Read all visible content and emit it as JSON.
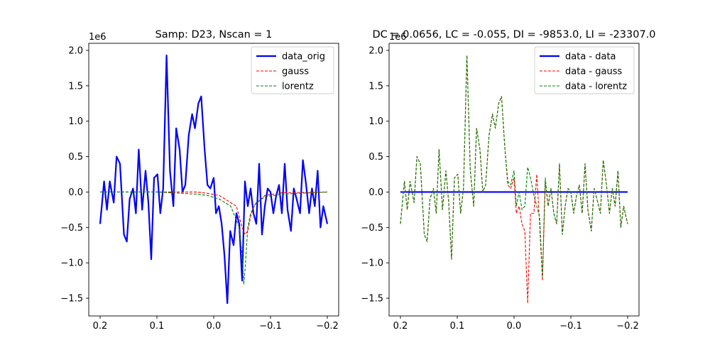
{
  "chart_data": [
    {
      "type": "line",
      "title": "Samp: D23, Nscan = 1",
      "y_offset_label": "1e6",
      "xlim": [
        0.22,
        -0.22
      ],
      "ylim": [
        -1.75,
        2.1
      ],
      "x_ticks": [
        0.2,
        0.1,
        0.0,
        -0.1,
        -0.2
      ],
      "x_tick_labels": [
        "0.2",
        "0.1",
        "0.0",
        "−0.1",
        "−0.2"
      ],
      "y_ticks": [
        -1.5,
        -1.0,
        -0.5,
        0.0,
        0.5,
        1.0,
        1.5,
        2.0
      ],
      "y_tick_labels": [
        "−1.5",
        "−1.0",
        "−0.5",
        "0.0",
        "0.5",
        "1.0",
        "1.5",
        "2.0"
      ],
      "legend_placement": "upper right",
      "series": [
        {
          "name": "data_orig",
          "color": "#0000ff",
          "style": "solid",
          "x": [
            0.2,
            0.193,
            0.188,
            0.183,
            0.176,
            0.171,
            0.165,
            0.158,
            0.153,
            0.148,
            0.142,
            0.137,
            0.132,
            0.126,
            0.12,
            0.115,
            0.11,
            0.105,
            0.099,
            0.094,
            0.089,
            0.083,
            0.077,
            0.071,
            0.066,
            0.06,
            0.055,
            0.05,
            0.044,
            0.038,
            0.033,
            0.027,
            0.022,
            0.016,
            0.011,
            0.006,
            0.0,
            -0.004,
            -0.009,
            -0.014,
            -0.019,
            -0.024,
            -0.029,
            -0.035,
            -0.04,
            -0.045,
            -0.05,
            -0.055,
            -0.06,
            -0.065,
            -0.07,
            -0.075,
            -0.08,
            -0.085,
            -0.09,
            -0.095,
            -0.1,
            -0.105,
            -0.11,
            -0.115,
            -0.12,
            -0.125,
            -0.13,
            -0.136,
            -0.141,
            -0.146,
            -0.152,
            -0.157,
            -0.162,
            -0.168,
            -0.173,
            -0.178,
            -0.183,
            -0.188,
            -0.193,
            -0.2
          ],
          "y": [
            -0.45,
            0.15,
            -0.25,
            0.15,
            -0.15,
            0.5,
            0.4,
            -0.6,
            -0.7,
            -0.1,
            0.05,
            -0.3,
            0.6,
            -0.25,
            0.3,
            -0.15,
            -0.95,
            0.2,
            0.25,
            -0.3,
            0.05,
            1.93,
            0.3,
            -0.2,
            0.9,
            0.6,
            0.0,
            0.1,
            0.8,
            1.1,
            0.9,
            1.25,
            1.35,
            0.6,
            0.1,
            0.05,
            0.2,
            -0.3,
            -0.2,
            -0.45,
            -0.9,
            -1.57,
            -0.55,
            -0.75,
            -0.3,
            -0.45,
            -1.25,
            0.15,
            -0.2,
            0.05,
            -0.3,
            -0.45,
            0.4,
            -0.6,
            -0.2,
            0.05,
            0.0,
            -0.3,
            -0.05,
            0.1,
            -0.3,
            0.4,
            -0.25,
            -0.55,
            0.05,
            -0.1,
            -0.3,
            0.45,
            0.15,
            -0.3,
            0.05,
            -0.2,
            0.3,
            -0.5,
            -0.2,
            -0.45
          ]
        },
        {
          "name": "gauss",
          "color": "#ff0000",
          "style": "dashed",
          "x": [
            0.2,
            0.1,
            0.03,
            0.01,
            -0.01,
            -0.04,
            -0.05,
            -0.055,
            -0.06,
            -0.065,
            -0.07,
            -0.09,
            -0.12,
            -0.2
          ],
          "y": [
            0.0,
            0.0,
            0.0,
            -0.02,
            -0.05,
            -0.2,
            -0.5,
            -0.6,
            -0.55,
            -0.35,
            -0.2,
            -0.05,
            -0.01,
            0.0
          ]
        },
        {
          "name": "lorentz",
          "color": "#008000",
          "style": "dashed",
          "x": [
            0.2,
            0.1,
            0.03,
            0.01,
            -0.01,
            -0.03,
            -0.045,
            -0.05,
            -0.053,
            -0.056,
            -0.06,
            -0.065,
            -0.075,
            -0.09,
            -0.12,
            -0.2
          ],
          "y": [
            0.0,
            0.0,
            -0.03,
            -0.05,
            -0.1,
            -0.2,
            -0.5,
            -0.9,
            -1.3,
            -1.0,
            -0.5,
            -0.3,
            -0.15,
            -0.07,
            -0.03,
            0.0
          ]
        }
      ]
    },
    {
      "type": "line",
      "title": "DC = 0.0656, LC = -0.055, DI = -9853.0, LI = -23307.0",
      "y_offset_label": "1e6",
      "xlim": [
        0.22,
        -0.22
      ],
      "ylim": [
        -1.75,
        2.1
      ],
      "x_ticks": [
        0.2,
        0.1,
        0.0,
        -0.1,
        -0.2
      ],
      "x_tick_labels": [
        "0.2",
        "0.1",
        "0.0",
        "−0.1",
        "−0.2"
      ],
      "y_ticks": [
        -1.5,
        -1.0,
        -0.5,
        0.0,
        0.5,
        1.0,
        1.5,
        2.0
      ],
      "y_tick_labels": [
        "−1.5",
        "−1.0",
        "−0.5",
        "0.0",
        "0.5",
        "1.0",
        "1.5",
        "2.0"
      ],
      "legend_placement": "upper right",
      "series": [
        {
          "name": "data - data",
          "color": "#0000ff",
          "style": "solid",
          "x": [
            0.2,
            -0.2
          ],
          "y": [
            0.0,
            0.0
          ]
        },
        {
          "name": "data - gauss",
          "color": "#ff0000",
          "style": "dashed",
          "x": [
            0.2,
            0.193,
            0.188,
            0.183,
            0.176,
            0.171,
            0.165,
            0.158,
            0.153,
            0.148,
            0.142,
            0.137,
            0.132,
            0.126,
            0.12,
            0.115,
            0.11,
            0.105,
            0.099,
            0.094,
            0.089,
            0.083,
            0.077,
            0.071,
            0.066,
            0.06,
            0.055,
            0.05,
            0.044,
            0.038,
            0.033,
            0.027,
            0.022,
            0.016,
            0.011,
            0.006,
            0.0,
            -0.004,
            -0.009,
            -0.014,
            -0.019,
            -0.024,
            -0.029,
            -0.035,
            -0.04,
            -0.045,
            -0.05,
            -0.055,
            -0.06,
            -0.065,
            -0.07,
            -0.075,
            -0.08,
            -0.085,
            -0.09,
            -0.095,
            -0.1,
            -0.105,
            -0.11,
            -0.115,
            -0.12,
            -0.125,
            -0.13,
            -0.136,
            -0.141,
            -0.146,
            -0.152,
            -0.157,
            -0.162,
            -0.168,
            -0.173,
            -0.178,
            -0.183,
            -0.188,
            -0.193,
            -0.2
          ],
          "y": [
            -0.45,
            0.15,
            -0.25,
            0.15,
            -0.15,
            0.5,
            0.4,
            -0.6,
            -0.7,
            -0.1,
            0.05,
            -0.3,
            0.6,
            -0.25,
            0.3,
            -0.15,
            -0.95,
            0.2,
            0.25,
            -0.3,
            0.05,
            1.93,
            0.3,
            -0.2,
            0.9,
            0.6,
            0.0,
            0.1,
            0.8,
            1.1,
            0.9,
            1.25,
            1.35,
            0.6,
            0.1,
            0.05,
            0.2,
            -0.3,
            -0.2,
            -0.45,
            -0.55,
            -1.57,
            -0.3,
            -0.3,
            0.25,
            -0.45,
            -1.25,
            0.15,
            -0.2,
            0.05,
            -0.3,
            -0.45,
            0.4,
            -0.6,
            -0.2,
            0.05,
            0.0,
            -0.3,
            -0.05,
            0.1,
            -0.3,
            0.4,
            -0.25,
            -0.55,
            0.05,
            -0.1,
            -0.3,
            0.45,
            0.15,
            -0.3,
            0.05,
            -0.2,
            0.3,
            -0.5,
            -0.2,
            -0.45
          ]
        },
        {
          "name": "data - lorentz",
          "color": "#008000",
          "style": "dashed",
          "x": [
            0.2,
            0.193,
            0.188,
            0.183,
            0.176,
            0.171,
            0.165,
            0.158,
            0.153,
            0.148,
            0.142,
            0.137,
            0.132,
            0.126,
            0.12,
            0.115,
            0.11,
            0.105,
            0.099,
            0.094,
            0.089,
            0.083,
            0.077,
            0.071,
            0.066,
            0.06,
            0.055,
            0.05,
            0.044,
            0.038,
            0.033,
            0.027,
            0.022,
            0.016,
            0.011,
            0.006,
            0.0,
            -0.004,
            -0.009,
            -0.014,
            -0.019,
            -0.024,
            -0.029,
            -0.035,
            -0.04,
            -0.045,
            -0.05,
            -0.055,
            -0.06,
            -0.065,
            -0.07,
            -0.075,
            -0.08,
            -0.085,
            -0.09,
            -0.095,
            -0.1,
            -0.105,
            -0.11,
            -0.115,
            -0.12,
            -0.125,
            -0.13,
            -0.136,
            -0.141,
            -0.146,
            -0.152,
            -0.157,
            -0.162,
            -0.168,
            -0.173,
            -0.178,
            -0.183,
            -0.188,
            -0.193,
            -0.2
          ],
          "y": [
            -0.45,
            0.15,
            -0.25,
            0.15,
            -0.15,
            0.5,
            0.4,
            -0.6,
            -0.7,
            -0.1,
            0.05,
            -0.3,
            0.6,
            -0.25,
            0.3,
            -0.15,
            -0.95,
            0.2,
            0.25,
            -0.3,
            0.05,
            1.93,
            0.3,
            -0.2,
            0.9,
            0.6,
            0.0,
            0.1,
            0.8,
            1.1,
            0.9,
            1.25,
            1.35,
            0.6,
            0.15,
            0.1,
            0.3,
            -0.2,
            0.0,
            -0.25,
            -0.2,
            0.35,
            0.2,
            -0.05,
            -0.2,
            -0.35,
            -1.2,
            0.2,
            -0.2,
            0.05,
            -0.3,
            -0.45,
            0.4,
            -0.6,
            -0.2,
            0.05,
            0.0,
            -0.3,
            -0.05,
            0.1,
            -0.3,
            0.4,
            -0.25,
            -0.55,
            0.05,
            -0.1,
            -0.3,
            0.45,
            0.15,
            -0.3,
            0.05,
            -0.2,
            0.3,
            -0.5,
            -0.2,
            -0.45
          ]
        }
      ]
    }
  ]
}
